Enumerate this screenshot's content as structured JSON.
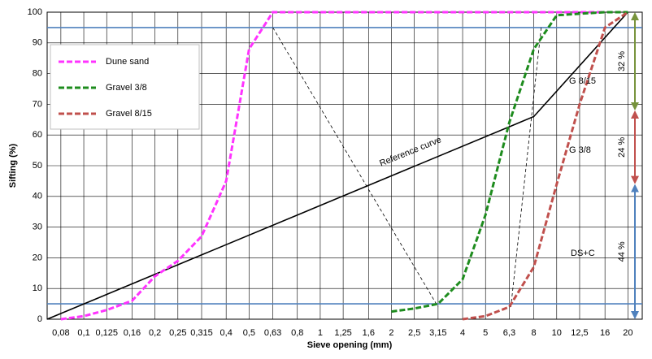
{
  "chart_data": {
    "type": "line",
    "xlabel": "Sieve opening (mm)",
    "ylabel": "Sifting (%)",
    "xscale": "log",
    "xlim": [
      0.07,
      23
    ],
    "ylim": [
      0,
      100
    ],
    "xticks": [
      {
        "value": 0.08,
        "label": "0,08"
      },
      {
        "value": 0.1,
        "label": "0,1"
      },
      {
        "value": 0.125,
        "label": "0,125"
      },
      {
        "value": 0.16,
        "label": "0,16"
      },
      {
        "value": 0.2,
        "label": "0,2"
      },
      {
        "value": 0.25,
        "label": "0,25"
      },
      {
        "value": 0.315,
        "label": "0,315"
      },
      {
        "value": 0.4,
        "label": "0,4"
      },
      {
        "value": 0.5,
        "label": "0,5"
      },
      {
        "value": 0.63,
        "label": "0,63"
      },
      {
        "value": 0.8,
        "label": "0,8"
      },
      1,
      {
        "value": 1.25,
        "label": "1,25"
      },
      {
        "value": 1.6,
        "label": "1,6"
      },
      2,
      {
        "value": 2.5,
        "label": "2,5"
      },
      {
        "value": 3.15,
        "label": "3,15"
      },
      4,
      5,
      {
        "value": 6.3,
        "label": "6,3"
      },
      8,
      10,
      {
        "value": 12.5,
        "label": "12,5"
      },
      16,
      20
    ],
    "yticks": [
      0,
      10,
      20,
      30,
      40,
      50,
      60,
      70,
      80,
      90,
      100
    ],
    "grid": true,
    "legend": "upper left",
    "series": [
      {
        "name": "Dune sand",
        "color": "#ff33ff",
        "dashed": true,
        "x": [
          0.08,
          0.1,
          0.125,
          0.16,
          0.2,
          0.25,
          0.315,
          0.4,
          0.5,
          0.63,
          16
        ],
        "values": [
          0,
          1,
          3,
          6,
          14,
          19,
          27,
          45,
          88,
          100,
          100
        ]
      },
      {
        "name": "Gravel 3/8",
        "color": "#1e8c1e",
        "dashed": true,
        "x": [
          2,
          2.5,
          3.15,
          4,
          5,
          6.3,
          8,
          10,
          12.5,
          16,
          20
        ],
        "values": [
          2.5,
          3.5,
          5,
          13,
          34,
          64,
          88,
          99,
          99.5,
          100,
          100
        ]
      },
      {
        "name": "Gravel 8/15",
        "color": "#c0504d",
        "dashed": true,
        "x": [
          4,
          5,
          6.3,
          8,
          10,
          12.5,
          16,
          20
        ],
        "values": [
          0,
          1,
          4,
          17,
          44,
          70,
          95,
          100
        ]
      }
    ],
    "lines": [
      {
        "color": "#000000",
        "width": 1.6,
        "x": [
          0.07,
          8,
          20
        ],
        "values": [
          0,
          66,
          100
        ]
      },
      {
        "color": "#000000",
        "width": 0.8,
        "dashed": true,
        "x": [
          0.63,
          3.15
        ],
        "values": [
          95,
          4
        ]
      },
      {
        "color": "#000000",
        "width": 0.8,
        "dashed": true,
        "x": [
          8.6,
          6.4
        ],
        "values": [
          95,
          4
        ]
      }
    ],
    "hlines": [
      {
        "value": 95,
        "color": "#4f81bd"
      },
      {
        "value": 5,
        "color": "#4f81bd"
      }
    ],
    "annotations": [
      "Reference curve",
      "G 8/15",
      "G 3/8",
      "DS+C"
    ],
    "brackets": [
      {
        "label": "32 %",
        "from": 68,
        "to": 100,
        "color": "#77933c"
      },
      {
        "label": "24 %",
        "from": 44,
        "to": 68,
        "color": "#c0504d"
      },
      {
        "label": "44 %",
        "from": 0,
        "to": 44,
        "color": "#4f81bd"
      }
    ]
  }
}
